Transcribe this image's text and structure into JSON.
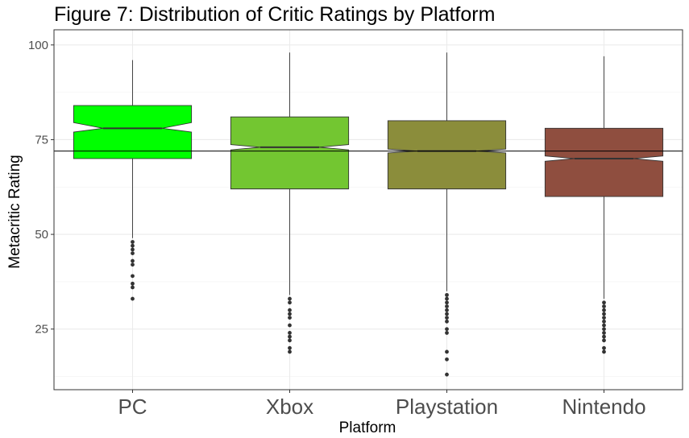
{
  "chart_data": {
    "type": "boxplot",
    "title": "Figure 7: Distribution of Critic Ratings by Platform",
    "xlabel": "Platform",
    "ylabel": "Metacritic Rating",
    "categories": [
      "PC",
      "Xbox",
      "Playstation",
      "Nintendo"
    ],
    "ylim": [
      9,
      104
    ],
    "yticks": [
      25,
      50,
      75,
      100
    ],
    "grid": true,
    "notched": true,
    "reference_line": {
      "y": 72
    },
    "boxes": [
      {
        "category": "PC",
        "color": "#00FF00",
        "whisker_low": 49,
        "q1": 70,
        "median": 78,
        "q3": 84,
        "whisker_high": 96,
        "notch_low": 77,
        "notch_high": 79.5,
        "outliers": [
          33,
          36,
          37,
          39,
          42,
          43,
          45,
          46,
          47,
          48
        ]
      },
      {
        "category": "Xbox",
        "color": "#73C631",
        "whisker_low": 34,
        "q1": 62,
        "median": 73,
        "q3": 81,
        "whisker_high": 98,
        "notch_low": 72.3,
        "notch_high": 73.7,
        "outliers": [
          19,
          20,
          22,
          23,
          24,
          26,
          28,
          29,
          30,
          32,
          33
        ]
      },
      {
        "category": "Playstation",
        "color": "#8B8D3B",
        "whisker_low": 35,
        "q1": 62,
        "median": 72,
        "q3": 80,
        "whisker_high": 98,
        "notch_low": 71.5,
        "notch_high": 72.5,
        "outliers": [
          13,
          17,
          19,
          24,
          25,
          27,
          28,
          29,
          30,
          31,
          32,
          33,
          34
        ]
      },
      {
        "category": "Nintendo",
        "color": "#8F4E3F",
        "whisker_low": 33,
        "q1": 60,
        "median": 70,
        "q3": 78,
        "whisker_high": 97,
        "notch_low": 69.3,
        "notch_high": 70.7,
        "outliers": [
          19,
          20,
          22,
          23,
          24,
          25,
          26,
          27,
          28,
          29,
          30,
          31,
          32
        ]
      }
    ]
  }
}
